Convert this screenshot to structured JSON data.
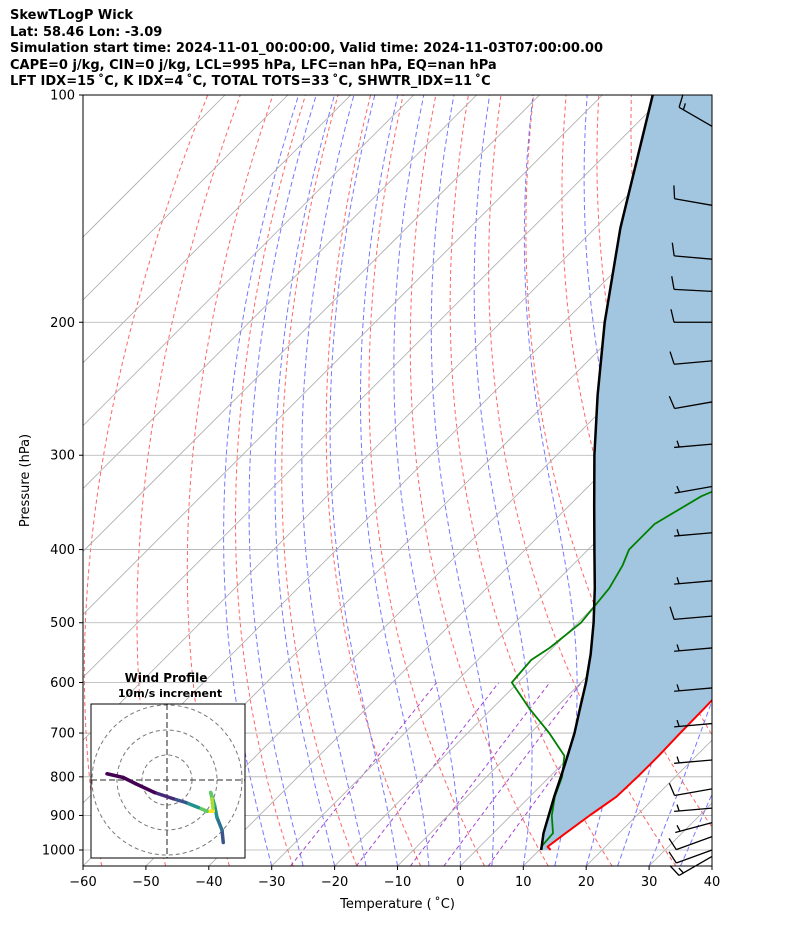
{
  "header": {
    "line1": "SkewTLogP Wick",
    "line2": "Lat: 58.46   Lon: -3.09",
    "line3": "Simulation start time: 2024-11-01_00:00:00, Valid time: 2024-11-03T07:00:00.00",
    "line4": "CAPE=0 j/kg, CIN=0 j/kg, LCL=995 hPa, LFC=nan hPa, EQ=nan hPa",
    "line5": "LFT IDX=15 ˚C, K IDX=4 ˚C, TOTAL TOTS=33 ˚C, SHWTR_IDX=11 ˚C"
  },
  "chart_data": {
    "type": "line",
    "xlabel": "Temperature ( ˚C)",
    "ylabel": "Pressure (hPa)",
    "x_ticks": [
      -60,
      -50,
      -40,
      -30,
      -20,
      -10,
      0,
      10,
      20,
      30,
      40
    ],
    "y_ticks": [
      100,
      200,
      300,
      400,
      500,
      600,
      700,
      800,
      900,
      1000
    ],
    "xlim": [
      -60,
      40
    ],
    "ylim": [
      1050,
      100
    ],
    "y_scale": "log",
    "grid": true,
    "series": [
      {
        "color": "#ff0000",
        "values": [
          [
            1000,
            11.8
          ],
          [
            990,
            10.8
          ],
          [
            950,
            11.5
          ],
          [
            900,
            12.5
          ],
          [
            850,
            13.8
          ],
          [
            800,
            14.0
          ],
          [
            750,
            14.0
          ],
          [
            700,
            13.8
          ],
          [
            650,
            13.7
          ],
          [
            600,
            13.5
          ],
          [
            550,
            12.5
          ],
          [
            500,
            10.0
          ],
          [
            450,
            6.5
          ],
          [
            400,
            3.0
          ],
          [
            350,
            -0.5
          ],
          [
            300,
            -4.5
          ],
          [
            270,
            -7.5
          ],
          [
            250,
            -10.5
          ],
          [
            220,
            -15.0
          ],
          [
            200,
            -18.5
          ],
          [
            180,
            -22.5
          ],
          [
            170,
            -25.0
          ],
          [
            160,
            -27.5
          ],
          [
            145,
            -29.0
          ],
          [
            135,
            -31.0
          ],
          [
            125,
            -34.5
          ],
          [
            117,
            -37.0
          ],
          [
            110,
            -40.5
          ],
          [
            100,
            -46.5
          ]
        ]
      },
      {
        "color": "#008000",
        "values": [
          [
            1000,
            10.2
          ],
          [
            990,
            9.8
          ],
          [
            950,
            9.5
          ],
          [
            900,
            6.5
          ],
          [
            850,
            4.0
          ],
          [
            800,
            2.0
          ],
          [
            750,
            -1.0
          ],
          [
            700,
            -7.0
          ],
          [
            650,
            -14.0
          ],
          [
            600,
            -21.0
          ],
          [
            560,
            -21.5
          ],
          [
            540,
            -20.5
          ],
          [
            500,
            -19.5
          ],
          [
            450,
            -20.5
          ],
          [
            420,
            -22.0
          ],
          [
            400,
            -23.5
          ],
          [
            370,
            -23.5
          ],
          [
            340,
            -20.5
          ],
          [
            310,
            -14.0
          ],
          [
            290,
            -10.5
          ],
          [
            270,
            -12.0
          ],
          [
            250,
            -22.5
          ],
          [
            230,
            -26.0
          ],
          [
            210,
            -27.0
          ],
          [
            200,
            -28.0
          ],
          [
            180,
            -32.0
          ],
          [
            165,
            -35.0
          ],
          [
            150,
            -37.0
          ],
          [
            140,
            -38.0
          ],
          [
            130,
            -38.0
          ],
          [
            120,
            -37.0
          ],
          [
            110,
            -38.0
          ],
          [
            100,
            -42.0
          ]
        ]
      },
      {
        "color": "#000000",
        "values": [
          [
            1000,
            10.3
          ],
          [
            950,
            8.0
          ],
          [
            900,
            6.0
          ],
          [
            850,
            3.9
          ],
          [
            800,
            1.8
          ],
          [
            750,
            -0.5
          ],
          [
            700,
            -3.0
          ],
          [
            650,
            -6.0
          ],
          [
            600,
            -9.2
          ],
          [
            550,
            -13.0
          ],
          [
            500,
            -17.5
          ],
          [
            450,
            -22.8
          ],
          [
            400,
            -29.0
          ],
          [
            350,
            -36.0
          ],
          [
            300,
            -44.0
          ],
          [
            250,
            -53.0
          ],
          [
            200,
            -63.5
          ],
          [
            150,
            -76.0
          ],
          [
            100,
            -92.0
          ]
        ]
      }
    ],
    "fill": {
      "between": "temperature and parcel profile",
      "color": "#a3c6e0"
    },
    "background_lines": {
      "dry_adiabats_color": "#ff5555",
      "moist_adiabats_color": "#5555ff",
      "mixing_ratio_color": "#9933cc",
      "isotherm_color": "#aaaaaa"
    },
    "wind_barbs": [
      {
        "p": 110,
        "speed_kt": 15,
        "dir_deg": 300
      },
      {
        "p": 140,
        "speed_kt": 10,
        "dir_deg": 280
      },
      {
        "p": 165,
        "speed_kt": 10,
        "dir_deg": 275
      },
      {
        "p": 182,
        "speed_kt": 10,
        "dir_deg": 273
      },
      {
        "p": 200,
        "speed_kt": 10,
        "dir_deg": 270
      },
      {
        "p": 225,
        "speed_kt": 10,
        "dir_deg": 265
      },
      {
        "p": 255,
        "speed_kt": 10,
        "dir_deg": 260
      },
      {
        "p": 290,
        "speed_kt": 5,
        "dir_deg": 265
      },
      {
        "p": 330,
        "speed_kt": 5,
        "dir_deg": 260
      },
      {
        "p": 380,
        "speed_kt": 5,
        "dir_deg": 265
      },
      {
        "p": 440,
        "speed_kt": 5,
        "dir_deg": 265
      },
      {
        "p": 490,
        "speed_kt": 10,
        "dir_deg": 265
      },
      {
        "p": 540,
        "speed_kt": 5,
        "dir_deg": 265
      },
      {
        "p": 610,
        "speed_kt": 5,
        "dir_deg": 265
      },
      {
        "p": 680,
        "speed_kt": 5,
        "dir_deg": 265
      },
      {
        "p": 760,
        "speed_kt": 5,
        "dir_deg": 265
      },
      {
        "p": 830,
        "speed_kt": 10,
        "dir_deg": 260
      },
      {
        "p": 880,
        "speed_kt": 5,
        "dir_deg": 265
      },
      {
        "p": 920,
        "speed_kt": 5,
        "dir_deg": 255
      },
      {
        "p": 960,
        "speed_kt": 10,
        "dir_deg": 250
      },
      {
        "p": 1000,
        "speed_kt": 10,
        "dir_deg": 250
      },
      {
        "p": 1020,
        "speed_kt": 15,
        "dir_deg": 240
      }
    ],
    "hodograph": {
      "title": "Wind Profile",
      "subtitle": "10m/s increment",
      "u": [
        4.5,
        4.4,
        4.0,
        3.8,
        3.5,
        3.6,
        3.7,
        3.2,
        2.5,
        1.5,
        0.5,
        -1.0,
        -2.5,
        -3.5,
        -4.8
      ],
      "v": [
        -5.0,
        -4.0,
        -3.0,
        -2.0,
        -1.0,
        -1.5,
        -2.5,
        -2.5,
        -2.2,
        -1.8,
        -1.5,
        -1.0,
        -0.3,
        0.2,
        0.5
      ],
      "colors": [
        "#3b528b",
        "#2c728e",
        "#21918c",
        "#27ad81",
        "#5ec962",
        "#aadc32",
        "#fde725",
        "#5ec962",
        "#21918c",
        "#3b528b",
        "#482878",
        "#440154",
        "#440154",
        "#440154",
        "#440154"
      ]
    }
  }
}
